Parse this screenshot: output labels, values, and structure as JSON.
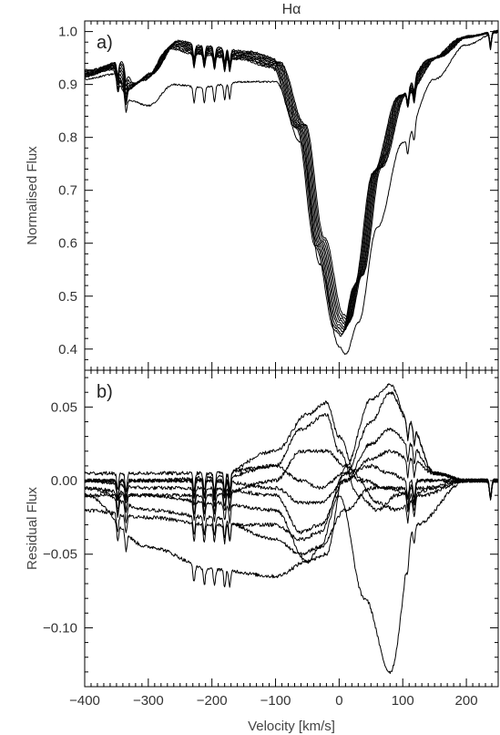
{
  "chart_data": [
    {
      "panel": "a)",
      "type": "line",
      "title": "Hα",
      "xlabel": "Velocity [km/s]",
      "ylabel": "Normalised Flux",
      "xlim": [
        -400,
        250
      ],
      "ylim": [
        0.36,
        1.02
      ],
      "x_ticks": [
        -400,
        -300,
        -200,
        -100,
        0,
        100,
        200
      ],
      "x_ticks_minor": 10,
      "y_ticks": [
        0.4,
        0.5,
        0.6,
        0.7,
        0.8,
        0.9,
        1.0
      ],
      "y_ticks_minor": 5,
      "y_tick_labels": [
        "0.4",
        "0.5",
        "0.6",
        "0.7",
        "0.8",
        "0.9",
        "1.0"
      ],
      "grid": false,
      "legend": "none",
      "series_count": 10,
      "profile_key_points": {
        "x": [
          -400,
          -350,
          -330,
          -300,
          -260,
          -220,
          -150,
          -100,
          -60,
          -30,
          0,
          10,
          30,
          60,
          100,
          150,
          200,
          250
        ],
        "y_representative": [
          0.92,
          0.935,
          0.895,
          0.915,
          0.975,
          0.965,
          0.955,
          0.94,
          0.82,
          0.6,
          0.45,
          0.44,
          0.53,
          0.74,
          0.88,
          0.95,
          0.99,
          1.0
        ],
        "y_lower_outlier": [
          0.91,
          0.92,
          0.87,
          0.86,
          0.9,
          0.895,
          0.905,
          0.905,
          0.79,
          0.56,
          0.405,
          0.39,
          0.45,
          0.63,
          0.79,
          0.91,
          0.975,
          1.0
        ],
        "min_range": [
          0.39,
          0.445
        ],
        "min_velocity": 8
      }
    },
    {
      "panel": "b)",
      "type": "line",
      "title": "",
      "xlabel": "Velocity [km/s]",
      "ylabel": "Residual Flux",
      "xlim": [
        -400,
        250
      ],
      "ylim": [
        -0.14,
        0.075
      ],
      "x_ticks": [
        -400,
        -300,
        -200,
        -100,
        0,
        100,
        200
      ],
      "x_tick_labels": [
        "-400",
        "-300",
        "-200",
        "-100",
        "0",
        "100",
        "200"
      ],
      "x_ticks_minor": 10,
      "y_ticks": [
        -0.1,
        -0.05,
        0,
        0.05
      ],
      "y_tick_labels": [
        "-0.10",
        "-0.05",
        "0.00",
        "0.05"
      ],
      "y_ticks_minor": 5,
      "grid": false,
      "legend": "none",
      "series_count": 10,
      "series": [
        {
          "x": [
            -400,
            -300,
            -200,
            -100,
            -50,
            -30,
            0,
            40,
            80,
            120,
            200,
            250
          ],
          "y": [
            -0.01,
            -0.045,
            -0.06,
            -0.065,
            -0.055,
            -0.045,
            -0.01,
            -0.08,
            -0.13,
            -0.03,
            0.0,
            0.0
          ]
        },
        {
          "x": [
            -400,
            -300,
            -200,
            -100,
            -50,
            -20,
            0,
            30,
            60,
            90,
            130,
            200,
            250
          ],
          "y": [
            0.0,
            0.0,
            0.002,
            0.02,
            0.045,
            0.053,
            0.03,
            0.0,
            -0.015,
            -0.02,
            -0.01,
            0.0,
            0.0
          ]
        },
        {
          "x": [
            -400,
            -300,
            -200,
            -100,
            -60,
            -20,
            0,
            30,
            60,
            90,
            130,
            200,
            250
          ],
          "y": [
            0.0,
            0.0,
            0.0,
            0.01,
            0.035,
            0.045,
            0.02,
            -0.01,
            -0.02,
            -0.01,
            0.0,
            0.0,
            0.0
          ]
        },
        {
          "x": [
            -400,
            -300,
            -200,
            -100,
            -60,
            -20,
            10,
            40,
            70,
            100,
            130,
            200,
            250
          ],
          "y": [
            -0.005,
            -0.01,
            -0.01,
            0.0,
            0.02,
            0.02,
            0.01,
            0.0,
            -0.005,
            -0.005,
            -0.005,
            0.0,
            0.0
          ]
        },
        {
          "x": [
            -400,
            -300,
            -200,
            -100,
            -60,
            -30,
            10,
            50,
            80,
            110,
            150,
            200,
            250
          ],
          "y": [
            -0.02,
            -0.025,
            -0.03,
            -0.03,
            -0.04,
            -0.035,
            0.005,
            0.04,
            0.06,
            0.04,
            0.005,
            0.0,
            0.0
          ]
        },
        {
          "x": [
            -400,
            -300,
            -200,
            -100,
            -50,
            -20,
            10,
            50,
            80,
            110,
            150,
            200,
            250
          ],
          "y": [
            -0.01,
            -0.01,
            -0.015,
            -0.02,
            -0.055,
            -0.05,
            0.01,
            0.055,
            0.065,
            0.04,
            0.005,
            0.0,
            0.0
          ]
        },
        {
          "x": [
            -400,
            -300,
            -200,
            -100,
            -60,
            -30,
            10,
            50,
            80,
            110,
            150,
            200,
            250
          ],
          "y": [
            0.0,
            -0.005,
            -0.005,
            -0.01,
            -0.035,
            -0.03,
            0.0,
            0.025,
            0.035,
            0.025,
            0.005,
            0.0,
            0.0
          ]
        },
        {
          "x": [
            -400,
            -300,
            -200,
            -100,
            -60,
            -30,
            10,
            50,
            80,
            110,
            150,
            200,
            250
          ],
          "y": [
            0.0,
            0.0,
            0.0,
            -0.005,
            -0.015,
            -0.015,
            0.0,
            0.015,
            0.02,
            0.015,
            0.005,
            0.0,
            0.0
          ]
        },
        {
          "x": [
            -400,
            -300,
            -200,
            -100,
            -60,
            -30,
            10,
            50,
            80,
            110,
            150,
            200,
            250
          ],
          "y": [
            -0.005,
            -0.02,
            -0.025,
            -0.04,
            -0.05,
            -0.045,
            -0.02,
            -0.005,
            -0.005,
            -0.01,
            -0.005,
            0.0,
            0.0
          ]
        },
        {
          "x": [
            -400,
            -300,
            -200,
            -100,
            -60,
            -30,
            10,
            50,
            80,
            110,
            150,
            200,
            250
          ],
          "y": [
            0.005,
            0.005,
            0.005,
            0.01,
            0.0,
            -0.005,
            0.005,
            0.01,
            0.005,
            0.0,
            0.0,
            0.0,
            0.0
          ]
        }
      ]
    }
  ]
}
